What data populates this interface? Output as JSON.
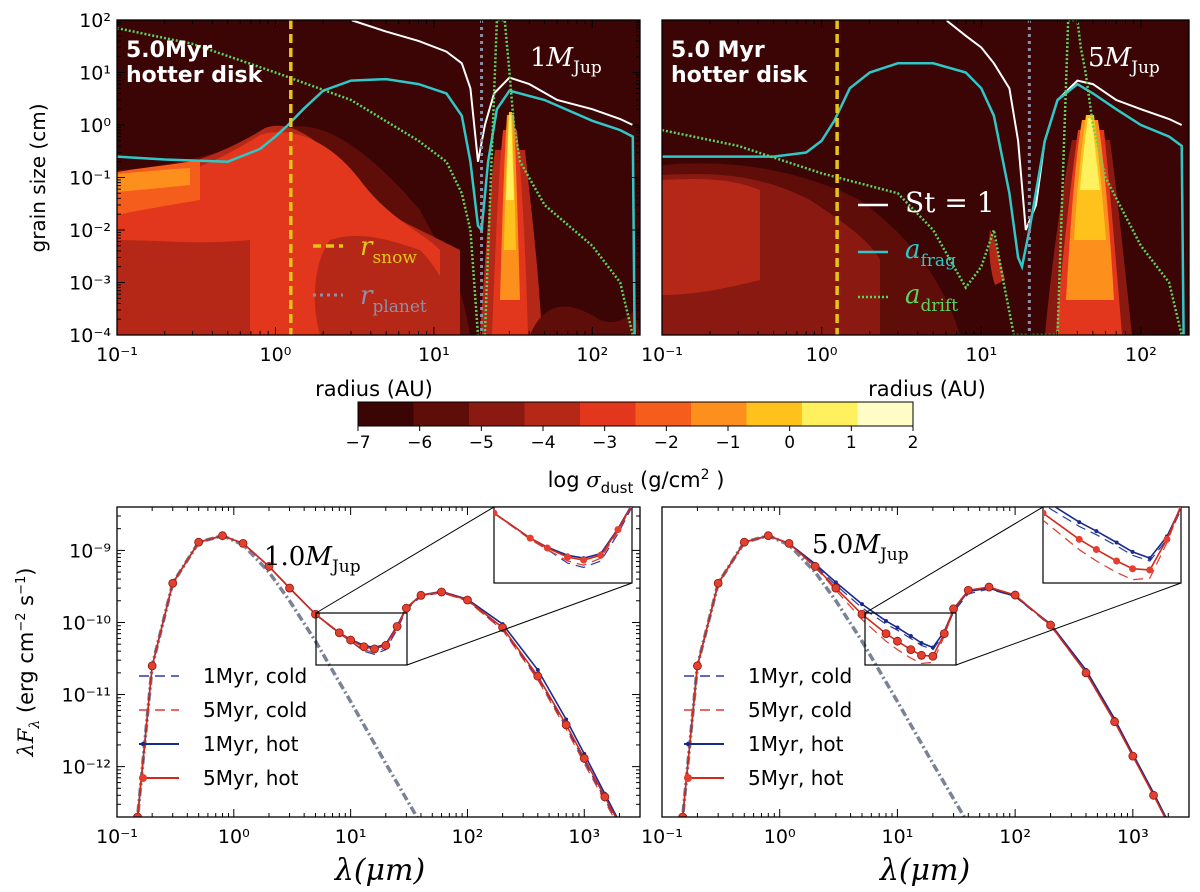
{
  "figure": {
    "top_xlabel": "radius (AU)",
    "top_ylabel": "grain size (cm)",
    "bottom_xlabel": "λ(μm)",
    "bottom_ylabel": "λF_λ (erg cm⁻² s⁻¹)",
    "colorbar_label": "log σ_dust (g/cm² )",
    "colorbar_ticks": [
      "−7",
      "−6",
      "−5",
      "−4",
      "−3",
      "−2",
      "−1",
      "0",
      "1",
      "2"
    ],
    "colorbar_colors": [
      "#3a0504",
      "#5e0d09",
      "#8a1a11",
      "#b52818",
      "#e2371c",
      "#f55d1c",
      "#fd8f1d",
      "#ffc21c",
      "#fff05e",
      "#fffcc6"
    ]
  },
  "chart_data": [
    {
      "type": "heatmap",
      "panel": "top-left",
      "title_line1": "5.0Myr",
      "title_line2": "hotter disk",
      "planet_label": "1M_Jup",
      "xlabel": "radius (AU)",
      "ylabel": "grain size (cm)",
      "xscale": "log",
      "yscale": "log",
      "xlim": [
        0.1,
        200
      ],
      "ylim": [
        0.0001,
        100
      ],
      "x_ticks": [
        "10⁻¹",
        "10⁰",
        "10¹",
        "10²"
      ],
      "y_ticks": [
        "10⁻⁴",
        "10⁻³",
        "10⁻²",
        "10⁻¹",
        "10⁰",
        "10¹",
        "10²"
      ],
      "r_snow": 1.25,
      "r_planet": 20,
      "legend": {
        "items": [
          "r_snow",
          "r_planet"
        ],
        "placement": "lower-center"
      },
      "st1_curve": {
        "x": [
          3,
          5,
          8,
          12,
          15,
          17,
          19,
          21,
          24,
          30,
          40,
          60,
          100,
          150,
          180
        ],
        "y": [
          100,
          60,
          40,
          25,
          15,
          5,
          0.2,
          1,
          4,
          8,
          6,
          3,
          2,
          1.3,
          1.0
        ]
      },
      "a_frag": {
        "x": [
          0.1,
          0.2,
          0.5,
          0.8,
          1.0,
          1.2,
          1.5,
          2,
          3,
          5,
          8,
          12,
          15,
          17,
          19,
          20,
          22,
          25,
          30,
          50,
          100,
          150,
          180,
          185
        ],
        "y": [
          0.25,
          0.22,
          0.2,
          0.35,
          0.6,
          1,
          2,
          4.5,
          7,
          7.5,
          6,
          4,
          1.5,
          0.2,
          0.012,
          0.01,
          0.2,
          2,
          4.5,
          3,
          1.2,
          0.8,
          0.6,
          0.0001
        ]
      },
      "a_drift": {
        "x": [
          0.1,
          0.3,
          1,
          3,
          8,
          12,
          15,
          17,
          19,
          21,
          25,
          28,
          30,
          32,
          35,
          50,
          100,
          150,
          180
        ],
        "y": [
          70,
          35,
          10,
          3,
          0.5,
          0.2,
          0.05,
          0.01,
          0.0001,
          0.0001,
          100,
          100,
          10,
          1,
          0.2,
          0.03,
          0.005,
          0.001,
          0.0001
        ]
      }
    },
    {
      "type": "heatmap",
      "panel": "top-right",
      "title_line1": "5.0 Myr",
      "title_line2": "hotter disk",
      "planet_label": "5M_Jup",
      "xlabel": "radius (AU)",
      "xscale": "log",
      "yscale": "log",
      "xlim": [
        0.1,
        200
      ],
      "ylim": [
        0.0001,
        100
      ],
      "x_ticks": [
        "10⁻¹",
        "10⁰",
        "10¹",
        "10²"
      ],
      "r_snow": 1.25,
      "r_planet": 20,
      "legend": {
        "items": [
          "St = 1",
          "a_frag",
          "a_drift"
        ],
        "placement": "lower-right"
      },
      "st1_curve": {
        "x": [
          6,
          8,
          10,
          12,
          15,
          17,
          19,
          22,
          25,
          30,
          40,
          50,
          70,
          100,
          150,
          180
        ],
        "y": [
          100,
          50,
          30,
          15,
          5,
          0.5,
          0.01,
          0.03,
          0.5,
          3,
          7,
          6,
          3,
          2,
          1.3,
          1.0
        ]
      },
      "a_frag": {
        "x": [
          0.1,
          0.3,
          0.5,
          0.8,
          1.0,
          1.2,
          1.5,
          2,
          3,
          5,
          8,
          10,
          12,
          15,
          17,
          18,
          20,
          25,
          30,
          40,
          50,
          70,
          100,
          150,
          180,
          185
        ],
        "y": [
          0.25,
          0.25,
          0.25,
          0.3,
          0.5,
          1.2,
          5,
          10,
          15,
          15,
          10,
          5,
          1.5,
          0.05,
          0.003,
          0.002,
          0.01,
          0.5,
          3,
          6,
          4,
          2,
          1,
          0.6,
          0.4,
          0.0001
        ]
      },
      "a_drift": {
        "x": [
          0.1,
          0.3,
          1,
          3,
          5,
          8,
          10,
          12,
          14,
          16,
          20,
          30,
          35,
          40,
          42,
          45,
          50,
          60,
          100,
          150,
          180
        ],
        "y": [
          0.8,
          0.4,
          0.12,
          0.05,
          0.01,
          0.0008,
          0.002,
          0.01,
          0.0008,
          0.0001,
          0.0001,
          0.0001,
          100,
          100,
          30,
          10,
          1,
          0.1,
          0.005,
          0.001,
          0.0001
        ]
      }
    },
    {
      "type": "line",
      "panel": "bottom-left",
      "annotation": "1.0M_Jup",
      "xlabel": "λ(μm)",
      "ylabel": "λF_λ (erg cm⁻² s⁻¹)",
      "xscale": "log",
      "yscale": "log",
      "xlim": [
        0.1,
        3000
      ],
      "ylim": [
        2e-13,
        4e-09
      ],
      "x_ticks": [
        "10⁻¹",
        "10⁰",
        "10¹",
        "10²",
        "10³"
      ],
      "y_ticks": [
        "10⁻¹²",
        "10⁻¹¹",
        "10⁻¹⁰",
        "10⁻⁹"
      ],
      "legend_placement": "lower-left",
      "stellar": {
        "x": [
          0.15,
          0.2,
          0.3,
          0.5,
          0.8,
          1.2,
          2,
          3,
          5,
          10,
          20,
          40
        ],
        "y": [
          2e-13,
          2.5e-11,
          3.5e-10,
          1.3e-09,
          1.6e-09,
          1.2e-09,
          5e-10,
          2e-10,
          5.5e-11,
          8e-12,
          1.1e-12,
          1.6e-13
        ]
      },
      "series": [
        {
          "name": "1Myr, cold",
          "x": [
            0.15,
            0.2,
            0.3,
            0.5,
            0.8,
            1.2,
            2,
            3,
            5,
            8,
            10,
            13,
            16,
            20,
            25,
            30,
            40,
            60,
            100,
            200,
            400,
            700,
            1000,
            1500,
            2000
          ],
          "y": [
            2e-13,
            2.5e-11,
            3.5e-10,
            1.3e-09,
            1.6e-09,
            1.25e-09,
            6e-10,
            3e-10,
            1.3e-10,
            7e-11,
            5.5e-11,
            4e-11,
            3.6e-11,
            4.2e-11,
            8e-11,
            1.5e-10,
            2.3e-10,
            2.6e-10,
            2e-10,
            8e-11,
            1.7e-11,
            3.5e-12,
            1.2e-12,
            3.5e-13,
            1.5e-13
          ]
        },
        {
          "name": "5Myr, cold",
          "x": [
            0.15,
            0.2,
            0.3,
            0.5,
            0.8,
            1.2,
            2,
            3,
            5,
            8,
            10,
            13,
            16,
            20,
            25,
            30,
            40,
            60,
            100,
            200,
            400,
            700,
            1000,
            1500,
            2000
          ],
          "y": [
            2e-13,
            2.5e-11,
            3.5e-10,
            1.3e-09,
            1.6e-09,
            1.25e-09,
            6e-10,
            3e-10,
            1.3e-10,
            7e-11,
            5.5e-11,
            4.2e-11,
            3.8e-11,
            4.5e-11,
            8.5e-11,
            1.55e-10,
            2.35e-10,
            2.6e-10,
            2e-10,
            7.8e-11,
            1.6e-11,
            3.3e-12,
            1.1e-12,
            3.3e-13,
            1.4e-13
          ]
        },
        {
          "name": "1Myr, hot",
          "x": [
            0.15,
            0.2,
            0.3,
            0.5,
            0.8,
            1.2,
            2,
            3,
            5,
            8,
            10,
            13,
            16,
            20,
            25,
            30,
            40,
            60,
            100,
            200,
            400,
            700,
            1000,
            1500,
            2000
          ],
          "y": [
            2e-13,
            2.5e-11,
            3.5e-10,
            1.3e-09,
            1.6e-09,
            1.25e-09,
            6e-10,
            3e-10,
            1.3e-10,
            7.2e-11,
            5.8e-11,
            4.8e-11,
            4.5e-11,
            5e-11,
            9e-11,
            1.6e-10,
            2.4e-10,
            2.7e-10,
            2.1e-10,
            9.5e-11,
            2.2e-11,
            4.5e-12,
            1.5e-12,
            4.2e-13,
            1.7e-13
          ]
        },
        {
          "name": "5Myr, hot",
          "x": [
            0.15,
            0.2,
            0.3,
            0.5,
            0.8,
            1.2,
            2,
            3,
            5,
            8,
            10,
            13,
            16,
            20,
            25,
            30,
            40,
            60,
            100,
            200,
            400,
            700,
            1000,
            1500,
            2000
          ],
          "y": [
            2e-13,
            2.5e-11,
            3.5e-10,
            1.3e-09,
            1.6e-09,
            1.25e-09,
            6e-10,
            3e-10,
            1.3e-10,
            7.2e-11,
            5.7e-11,
            4.6e-11,
            4.3e-11,
            4.8e-11,
            8.8e-11,
            1.58e-10,
            2.38e-10,
            2.65e-10,
            2.05e-10,
            8.5e-11,
            1.8e-11,
            3.8e-12,
            1.3e-12,
            3.8e-13,
            1.6e-13
          ]
        }
      ]
    },
    {
      "type": "line",
      "panel": "bottom-right",
      "annotation": "5.0M_Jup",
      "xlabel": "λ(μm)",
      "xscale": "log",
      "yscale": "log",
      "xlim": [
        0.1,
        3000
      ],
      "ylim": [
        2e-13,
        4e-09
      ],
      "x_ticks": [
        "10⁻¹",
        "10⁰",
        "10¹",
        "10²",
        "10³"
      ],
      "legend_placement": "lower-left",
      "stellar": {
        "x": [
          0.15,
          0.2,
          0.3,
          0.5,
          0.8,
          1.2,
          2,
          3,
          5,
          10,
          20,
          40
        ],
        "y": [
          2e-13,
          2.5e-11,
          3.5e-10,
          1.3e-09,
          1.6e-09,
          1.2e-09,
          5e-10,
          2e-10,
          5.5e-11,
          8e-12,
          1.1e-12,
          1.6e-13
        ]
      },
      "series": [
        {
          "name": "1Myr, cold",
          "x": [
            0.15,
            0.2,
            0.3,
            0.5,
            0.8,
            1.2,
            2,
            3,
            5,
            8,
            10,
            13,
            16,
            20,
            25,
            30,
            40,
            60,
            100,
            200,
            400,
            700,
            1000,
            1500,
            2000
          ],
          "y": [
            2e-13,
            2.5e-11,
            3.5e-10,
            1.3e-09,
            1.6e-09,
            1.25e-09,
            6.2e-10,
            3.3e-10,
            1.6e-10,
            9.5e-11,
            7.8e-11,
            6e-11,
            4.8e-11,
            4.2e-11,
            7e-11,
            1.4e-10,
            2.5e-10,
            2.9e-10,
            2.3e-10,
            9e-11,
            2e-11,
            4.2e-12,
            1.4e-12,
            4e-13,
            1.6e-13
          ]
        },
        {
          "name": "5Myr, cold",
          "x": [
            0.15,
            0.2,
            0.3,
            0.5,
            0.8,
            1.2,
            2,
            3,
            5,
            8,
            10,
            13,
            16,
            20,
            25,
            30,
            40,
            60,
            100,
            200,
            400,
            700,
            1000,
            1500,
            2000
          ],
          "y": [
            2e-13,
            2.5e-11,
            3.5e-10,
            1.3e-09,
            1.6e-09,
            1.25e-09,
            5.8e-10,
            2.8e-10,
            1.1e-10,
            5.5e-11,
            4.2e-11,
            3.2e-11,
            2.7e-11,
            2.8e-11,
            6.5e-11,
            1.5e-10,
            2.7e-10,
            3.1e-10,
            2.4e-10,
            9.2e-11,
            2e-11,
            4.2e-12,
            1.4e-12,
            4e-13,
            1.6e-13
          ]
        },
        {
          "name": "1Myr, hot",
          "x": [
            0.15,
            0.2,
            0.3,
            0.5,
            0.8,
            1.2,
            2,
            3,
            5,
            8,
            10,
            13,
            16,
            20,
            25,
            30,
            40,
            60,
            100,
            200,
            400,
            700,
            1000,
            1500,
            2000
          ],
          "y": [
            2e-13,
            2.5e-11,
            3.5e-10,
            1.3e-09,
            1.6e-09,
            1.25e-09,
            6.5e-10,
            3.6e-10,
            1.8e-10,
            1.05e-10,
            8.5e-11,
            6.5e-11,
            5.2e-11,
            4.5e-11,
            7.5e-11,
            1.5e-10,
            2.7e-10,
            3e-10,
            2.3e-10,
            9.5e-11,
            2.2e-11,
            4.6e-12,
            1.5e-12,
            4.3e-13,
            1.7e-13
          ]
        },
        {
          "name": "5Myr, hot",
          "x": [
            0.15,
            0.2,
            0.3,
            0.5,
            0.8,
            1.2,
            2,
            3,
            5,
            8,
            10,
            13,
            16,
            20,
            25,
            30,
            40,
            60,
            100,
            200,
            400,
            700,
            1000,
            1500,
            2000
          ],
          "y": [
            2e-13,
            2.5e-11,
            3.5e-10,
            1.3e-09,
            1.6e-09,
            1.25e-09,
            6e-10,
            3e-10,
            1.3e-10,
            7e-11,
            5.5e-11,
            4.2e-11,
            3.5e-11,
            3.4e-11,
            7e-11,
            1.55e-10,
            2.8e-10,
            3.1e-10,
            2.4e-10,
            9.2e-11,
            2e-11,
            4.2e-12,
            1.4e-12,
            4e-13,
            1.6e-13
          ]
        }
      ]
    }
  ]
}
